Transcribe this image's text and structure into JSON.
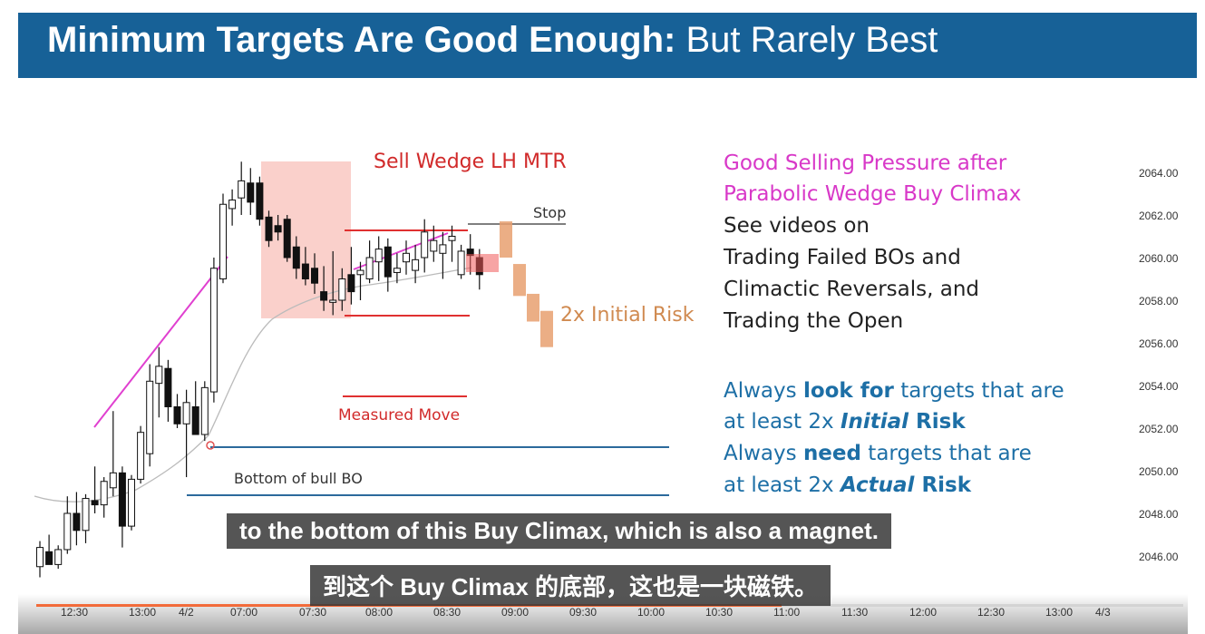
{
  "slide": {
    "title_bold": "Minimum Targets Are Good Enough:",
    "title_rest": " But Rarely Best"
  },
  "annotations": {
    "sell_wedge": "Sell Wedge LH MTR",
    "stop": "Stop",
    "two_x": "2x Initial Risk",
    "measured_move": "Measured Move",
    "bottom_bull_bo": "Bottom of bull BO"
  },
  "notes": {
    "pink_line1": "Good Selling Pressure after",
    "pink_line2": "Parabolic Wedge Buy Climax",
    "black_lines": [
      "See videos on",
      "Trading Failed BOs and",
      "Climactic Reversals, and",
      "Trading the Open"
    ],
    "blue1_pre": "Always ",
    "blue1_bold": "look for",
    "blue1_post": " targets that are",
    "blue2_pre": "at least 2x ",
    "blue2_bi": "Initial",
    "blue2_post": " Risk",
    "blue3_pre": "Always ",
    "blue3_bold": "need",
    "blue3_post": " targets that are",
    "blue4_pre": "at least 2x ",
    "blue4_bi": "Actual",
    "blue4_post": " Risk"
  },
  "price_axis": [
    "2064.00",
    "2062.00",
    "2060.00",
    "2058.00",
    "2056.00",
    "2054.00",
    "2052.00",
    "2050.00",
    "2048.00",
    "2046.00"
  ],
  "time_axis": [
    "12:30",
    "13:00",
    "4/2",
    "07:00",
    "07:30",
    "08:00",
    "08:30",
    "09:00",
    "09:30",
    "10:00",
    "10:30",
    "11:00",
    "11:30",
    "12:00",
    "12:30",
    "13:00",
    "4/3"
  ],
  "subtitles": {
    "english": "to the bottom of this Buy Climax, which is also a magnet.",
    "chinese": "到这个 Buy Climax 的底部，这也是一块磁铁。"
  },
  "player": {
    "progress": 0.65,
    "progress_color": "#f26b3a"
  },
  "colors": {
    "title_bar": "#176197",
    "bull": "#ffffff",
    "bear": "#111111",
    "pink": "#e040d0",
    "red": "#e03030",
    "blue_line": "#2c6a9c",
    "orange": "#e8a070"
  },
  "chart_data": {
    "type": "candlestick",
    "ylim": [
      2045.0,
      2065.0
    ],
    "series": [
      {
        "name": "",
        "values": [
          [
            2045.5,
            2046.7,
            2045.0,
            2046.4
          ],
          [
            2046.2,
            2047.0,
            2045.6,
            2045.6
          ],
          [
            2045.6,
            2046.5,
            2045.4,
            2046.3
          ],
          [
            2046.3,
            2048.8,
            2046.1,
            2048.0
          ],
          [
            2048.0,
            2049.0,
            2046.5,
            2047.2
          ],
          [
            2047.2,
            2048.9,
            2046.6,
            2048.7
          ],
          [
            2048.6,
            2050.2,
            2048.0,
            2048.4
          ],
          [
            2048.4,
            2049.7,
            2047.8,
            2049.5
          ],
          [
            2049.2,
            2052.8,
            2048.8,
            2049.9
          ],
          [
            2049.9,
            2050.2,
            2046.4,
            2047.4
          ],
          [
            2047.4,
            2049.8,
            2047.2,
            2049.6
          ],
          [
            2049.6,
            2052.1,
            2049.4,
            2051.8
          ],
          [
            2050.8,
            2055.0,
            2050.2,
            2054.2
          ],
          [
            2054.1,
            2055.8,
            2052.5,
            2054.9
          ],
          [
            2054.8,
            2055.2,
            2052.3,
            2053.0
          ],
          [
            2053.0,
            2053.6,
            2052.0,
            2052.2
          ],
          [
            2052.2,
            2053.8,
            2049.7,
            2053.2
          ],
          [
            2053.0,
            2054.2,
            2051.8,
            2051.7
          ],
          [
            2051.7,
            2054.2,
            2051.4,
            2053.9
          ],
          [
            2053.7,
            2060.0,
            2053.2,
            2059.5
          ],
          [
            2059.0,
            2063.0,
            2058.8,
            2062.5
          ],
          [
            2062.3,
            2063.2,
            2061.5,
            2062.7
          ],
          [
            2062.8,
            2064.5,
            2062.0,
            2063.6
          ],
          [
            2063.5,
            2064.2,
            2062.0,
            2062.6
          ],
          [
            2063.5,
            2063.8,
            2061.5,
            2061.8
          ],
          [
            2061.9,
            2062.2,
            2060.5,
            2060.8
          ],
          [
            2061.5,
            2062.0,
            2060.8,
            2061.2
          ],
          [
            2061.8,
            2062.0,
            2059.8,
            2060.0
          ],
          [
            2060.5,
            2061.0,
            2059.0,
            2059.5
          ],
          [
            2059.7,
            2060.5,
            2058.7,
            2059.0
          ],
          [
            2059.5,
            2060.2,
            2058.3,
            2058.8
          ],
          [
            2058.4,
            2059.6,
            2057.5,
            2058.0
          ],
          [
            2057.9,
            2060.3,
            2057.3,
            2058.0
          ],
          [
            2058.0,
            2059.5,
            2057.5,
            2059.0
          ],
          [
            2059.2,
            2060.5,
            2057.8,
            2058.4
          ],
          [
            2059.2,
            2059.8,
            2058.0,
            2059.4
          ],
          [
            2059.0,
            2060.8,
            2058.8,
            2060.0
          ],
          [
            2059.8,
            2061.0,
            2058.9,
            2060.4
          ],
          [
            2060.5,
            2060.9,
            2058.4,
            2059.1
          ],
          [
            2059.3,
            2060.2,
            2058.8,
            2059.5
          ],
          [
            2059.8,
            2060.8,
            2059.2,
            2060.2
          ],
          [
            2059.4,
            2060.6,
            2058.8,
            2059.9
          ],
          [
            2060.0,
            2061.8,
            2059.3,
            2061.2
          ],
          [
            2060.3,
            2061.5,
            2059.8,
            2060.8
          ],
          [
            2060.2,
            2061.2,
            2059.0,
            2060.6
          ],
          [
            2060.8,
            2061.5,
            2059.8,
            2061.0
          ],
          [
            2059.2,
            2060.6,
            2059.0,
            2060.3
          ],
          [
            2060.4,
            2061.1,
            2059.2,
            2060.1
          ],
          [
            2060.0,
            2060.4,
            2058.5,
            2059.2
          ]
        ]
      }
    ],
    "projected_bars": [
      [
        2060.0,
        2061.7
      ],
      [
        2058.2,
        2059.7
      ],
      [
        2057.0,
        2058.3
      ],
      [
        2055.8,
        2057.5
      ]
    ]
  }
}
